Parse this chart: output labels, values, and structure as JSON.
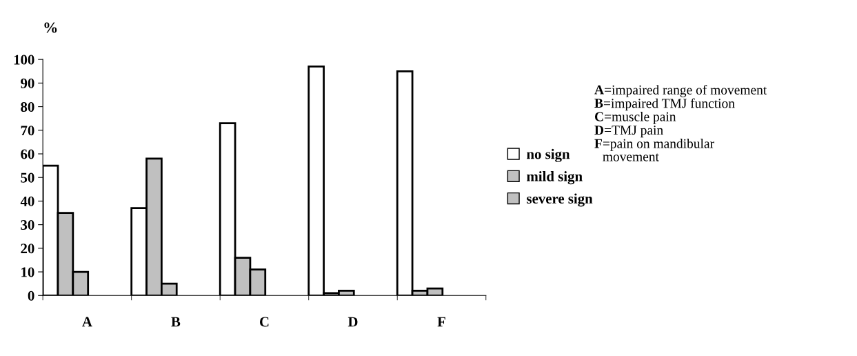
{
  "chart_data": {
    "type": "bar",
    "ylabel": "%",
    "categories": [
      "A",
      "B",
      "C",
      "D",
      "F"
    ],
    "series": [
      {
        "name": "no sign",
        "color": "#ffffff",
        "values": [
          55,
          37,
          73,
          97,
          95
        ]
      },
      {
        "name": "mild sign",
        "color": "#c0c0c0",
        "values": [
          35,
          58,
          16,
          1,
          2
        ]
      },
      {
        "name": "severe sign",
        "color": "#c0c0c0",
        "values": [
          10,
          5,
          11,
          2,
          3
        ]
      }
    ],
    "ylim": [
      0,
      100
    ],
    "yticks": [
      0,
      10,
      20,
      30,
      40,
      50,
      60,
      70,
      80,
      90,
      100
    ],
    "grid": false,
    "legend": "right",
    "annotations": [
      "A=impaired range of movement",
      "B=impaired TMJ function",
      "C=muscle pain",
      "D=TMJ pain",
      "F=pain on mandibular\nmovement"
    ]
  }
}
